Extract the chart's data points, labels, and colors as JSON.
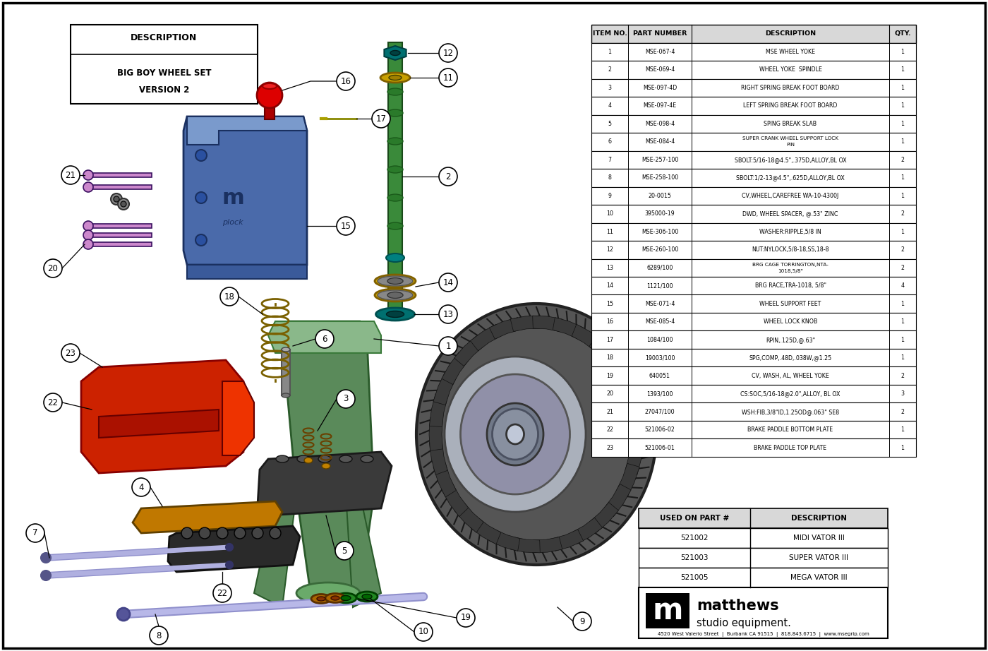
{
  "bg_color": "#ffffff",
  "title_lines": [
    "DESCRIPTION",
    "BIG BOY WHEEL SET",
    "VERSION 2"
  ],
  "table_header": [
    "ITEM NO.",
    "PART NUMBER",
    "DESCRIPTION",
    "QTY."
  ],
  "table_rows": [
    [
      "1",
      "MSE-067-4",
      "MSE WHEEL YOKE",
      "1"
    ],
    [
      "2",
      "MSE-069-4",
      "WHEEL YOKE  SPINDLE",
      "1"
    ],
    [
      "3",
      "MSE-097-4D",
      "RIGHT SPRING BREAK FOOT BOARD",
      "1"
    ],
    [
      "4",
      "MSE-097-4E",
      "LEFT SPRING BREAK FOOT BOARD",
      "1"
    ],
    [
      "5",
      "MSE-098-4",
      "SPING BREAK SLAB",
      "1"
    ],
    [
      "6",
      "MSE-084-4",
      "SUPER CRANK WHEEL SUPPORT LOCK\nPIN",
      "1"
    ],
    [
      "7",
      "MSE-257-100",
      "SBOLT:5/16-18@4.5\",.375D,ALLOY,BL OX",
      "2"
    ],
    [
      "8",
      "MSE-258-100",
      "SBOLT:1/2-13@4.5\",.625D,ALLOY,BL OX",
      "1"
    ],
    [
      "9",
      "20-0015",
      "CV,WHEEL,CAREFREE WA-10-4300J",
      "1"
    ],
    [
      "10",
      "395000-19",
      "DWD, WHEEL SPACER, @.53\" ZINC",
      "2"
    ],
    [
      "11",
      "MSE-306-100",
      "WASHER:RIPPLE,5/8 IN",
      "1"
    ],
    [
      "12",
      "MSE-260-100",
      "NUT:NYLOCK,5/8-18,SS,18-8",
      "2"
    ],
    [
      "13",
      "6289/100",
      "BRG CAGE TORRINGTON,NTA-\n1018,5/8\"",
      "2"
    ],
    [
      "14",
      "1121/100",
      "BRG RACE,TRA-1018, 5/8\"",
      "4"
    ],
    [
      "15",
      "MSE-071-4",
      "WHEEL SUPPORT FEET",
      "1"
    ],
    [
      "16",
      "MSE-085-4",
      "WHEEL LOCK KNOB",
      "1"
    ],
    [
      "17",
      "1084/100",
      "RPIN,.125D,@.63\"",
      "1"
    ],
    [
      "18",
      "19003/100",
      "SPG,COMP,.48D,.038W,@1.25",
      "1"
    ],
    [
      "19",
      "640051",
      "CV, WASH, AL, WHEEL YOKE",
      "2"
    ],
    [
      "20",
      "1393/100",
      "CS:SOC,5/16-18@2.0\",ALLOY, BL OX",
      "3"
    ],
    [
      "21",
      "27047/100",
      "WSH:FIB,3/8\"ID,1.25OD@.063\" SE8",
      "2"
    ],
    [
      "22",
      "521006-02",
      "BRAKE PADDLE BOTTOM PLATE",
      "1"
    ],
    [
      "23",
      "521006-01",
      "BRAKE PADDLE TOP PLATE",
      "1"
    ]
  ],
  "used_on_table": [
    [
      "521002",
      "MIDI VATOR III"
    ],
    [
      "521003",
      "SUPER VATOR III"
    ],
    [
      "521005",
      "MEGA VATOR III"
    ]
  ],
  "company_address": "4520 West Valerio Street  |  Burbank CA 91515  |  818.843.6715  |  www.msegrip.com"
}
